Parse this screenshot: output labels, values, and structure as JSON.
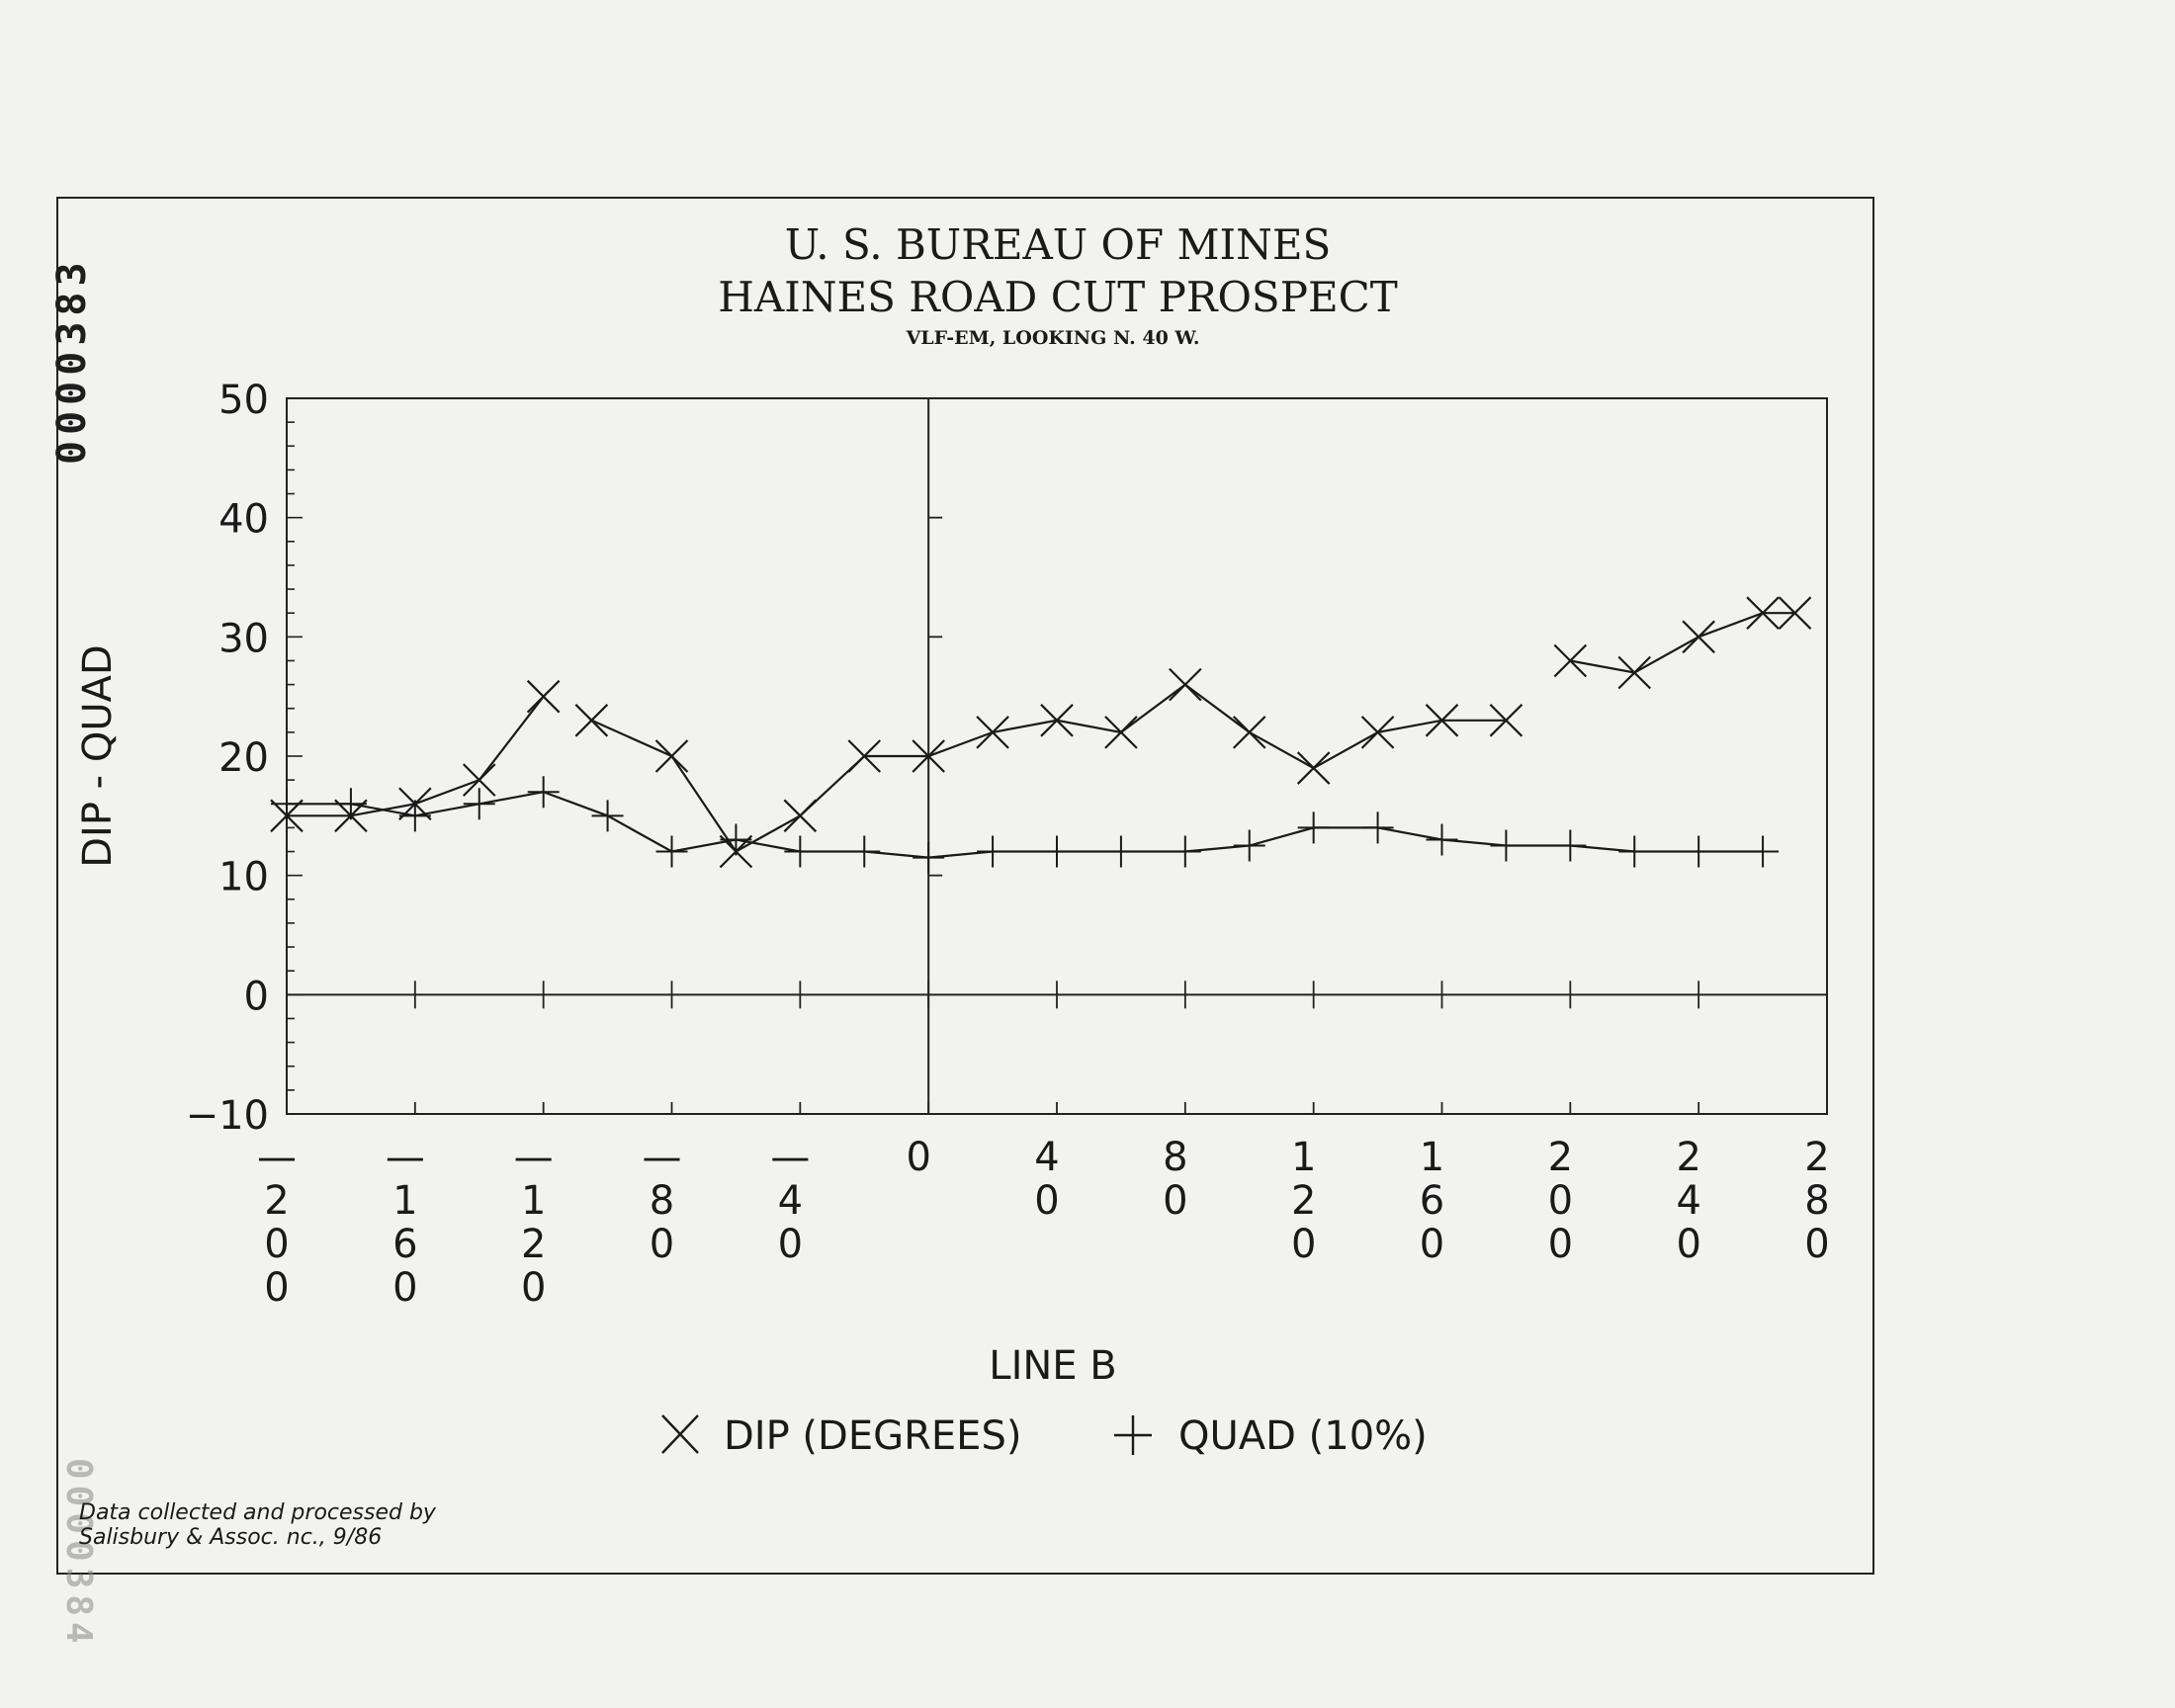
{
  "document": {
    "stamp_top": "0000383",
    "stamp_bottom": "0000384",
    "credit_line1": "Data collected and processed by",
    "credit_line2": "Salisbury & Assoc. nc., 9/86"
  },
  "chart_data": {
    "type": "line",
    "title": "U. S. BUREAU OF MINES",
    "subtitle": "HAINES ROAD CUT PROSPECT",
    "subsubtitle": "VLF-EM, LOOKING N. 40 W.",
    "xlabel": "LINE B",
    "ylabel": "DIP - QUAD",
    "xlim": [
      -200,
      280
    ],
    "ylim": [
      -10,
      50
    ],
    "yticks": [
      50,
      40,
      30,
      20,
      10,
      0,
      -10
    ],
    "xticks": [
      -200,
      -160,
      -120,
      -80,
      -40,
      0,
      40,
      80,
      120,
      160,
      200,
      240,
      280
    ],
    "xtick_labels": [
      [
        "—",
        "2",
        "0",
        "0"
      ],
      [
        "—",
        "1",
        "6",
        "0"
      ],
      [
        "—",
        "1",
        "2",
        "0"
      ],
      [
        "—",
        "8",
        "0"
      ],
      [
        "—",
        "4",
        "0"
      ],
      [
        "0"
      ],
      [
        "4",
        "0"
      ],
      [
        "8",
        "0"
      ],
      [
        "1",
        "2",
        "0"
      ],
      [
        "1",
        "6",
        "0"
      ],
      [
        "2",
        "0",
        "0"
      ],
      [
        "2",
        "4",
        "0"
      ],
      [
        "2",
        "8",
        "0"
      ]
    ],
    "grid": false,
    "legend_position": "bottom-center",
    "series": [
      {
        "name": "DIP (DEGREES)",
        "marker": "x",
        "segments": [
          [
            [
              -200,
              15
            ],
            [
              -180,
              15
            ],
            [
              -160,
              16
            ],
            [
              -140,
              18
            ],
            [
              -120,
              25
            ]
          ],
          [
            [
              -105,
              23
            ],
            [
              -80,
              20
            ],
            [
              -60,
              12
            ],
            [
              -40,
              15
            ],
            [
              -20,
              20
            ],
            [
              0,
              20
            ],
            [
              20,
              22
            ],
            [
              40,
              23
            ],
            [
              60,
              22
            ],
            [
              80,
              26
            ],
            [
              100,
              22
            ],
            [
              120,
              19
            ],
            [
              140,
              22
            ],
            [
              160,
              23
            ],
            [
              180,
              23
            ]
          ],
          [
            [
              200,
              28
            ],
            [
              220,
              27
            ],
            [
              240,
              30
            ],
            [
              260,
              32
            ],
            [
              270,
              32
            ]
          ]
        ]
      },
      {
        "name": "QUAD (10%)",
        "marker": "+",
        "segments": [
          [
            [
              -200,
              16
            ],
            [
              -180,
              16
            ],
            [
              -160,
              15
            ],
            [
              -140,
              16
            ],
            [
              -120,
              17
            ],
            [
              -100,
              15
            ],
            [
              -80,
              12
            ],
            [
              -60,
              13
            ],
            [
              -40,
              12
            ],
            [
              -20,
              12
            ],
            [
              0,
              11.5
            ],
            [
              20,
              12
            ],
            [
              40,
              12
            ],
            [
              60,
              12
            ],
            [
              80,
              12
            ],
            [
              100,
              12.5
            ],
            [
              120,
              14
            ],
            [
              140,
              14
            ],
            [
              160,
              13
            ],
            [
              180,
              12.5
            ],
            [
              200,
              12.5
            ],
            [
              220,
              12
            ],
            [
              240,
              12
            ],
            [
              260,
              12
            ]
          ]
        ]
      }
    ]
  }
}
